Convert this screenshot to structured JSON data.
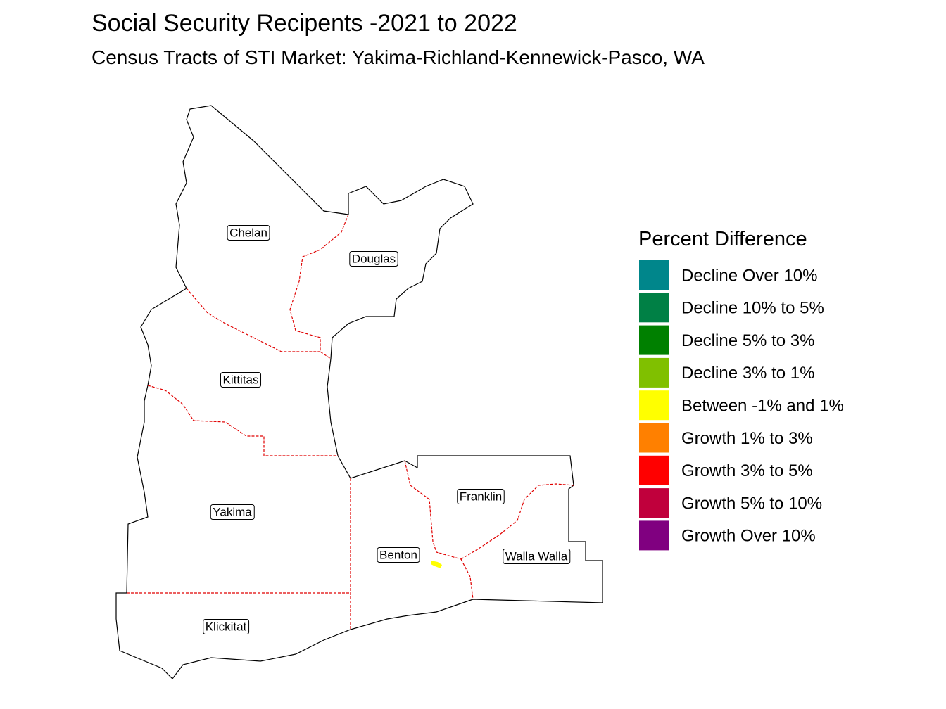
{
  "title": "Social Security Recipents -2021 to 2022",
  "subtitle": "Census Tracts of STI Market: Yakima-Richland-Kennewick-Pasco, WA",
  "legend": {
    "title": "Percent Difference",
    "items": [
      {
        "label": "Decline Over 10%",
        "color": "#00868b"
      },
      {
        "label": "Decline 10% to 5%",
        "color": "#008045"
      },
      {
        "label": "Decline 5% to 3%",
        "color": "#008000"
      },
      {
        "label": "Decline 3% to 1%",
        "color": "#80c000"
      },
      {
        "label": "Between -1% and 1%",
        "color": "#ffff00"
      },
      {
        "label": "Growth 1% to 3%",
        "color": "#ff8000"
      },
      {
        "label": "Growth 3% to 5%",
        "color": "#ff0000"
      },
      {
        "label": "Growth 5% to 10%",
        "color": "#c0003c"
      },
      {
        "label": "Growth Over 10%",
        "color": "#800080"
      }
    ]
  },
  "counties": [
    "Chelan",
    "Douglas",
    "Kittitas",
    "Yakima",
    "Franklin",
    "Benton",
    "Walla Walla",
    "Klickitat"
  ]
}
